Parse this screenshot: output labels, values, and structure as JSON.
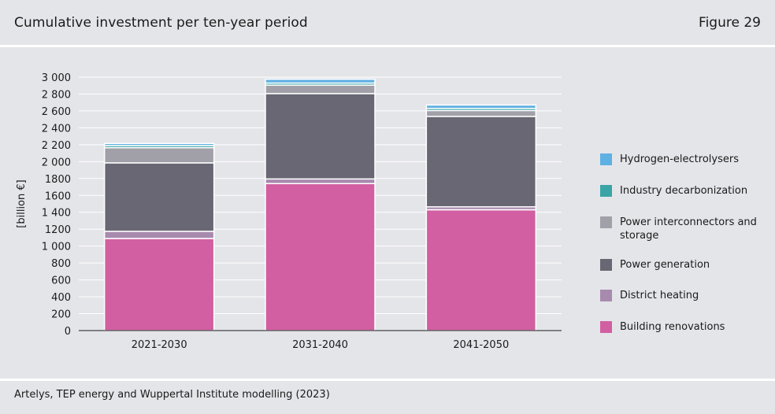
{
  "header": {
    "title": "Cumulative investment per ten-year period",
    "figure_label": "Figure 29"
  },
  "footer": {
    "source": "Artelys, TEP energy and Wuppertal Institute modelling (2023)"
  },
  "colors": {
    "Building renovations": "#d15fa1",
    "District heating": "#a88aae",
    "Power generation": "#686773",
    "Power interconnectors and storage": "#a1a0a8",
    "Industry decarbonization": "#3aa4a7",
    "Hydrogen-electrolysers": "#5fb0e3"
  },
  "chart_data": {
    "type": "bar",
    "stacked": true,
    "categories": [
      "2021-2030",
      "2031-2040",
      "2041-2050"
    ],
    "series": [
      {
        "name": "Building renovations",
        "values": [
          1090,
          1740,
          1430
        ]
      },
      {
        "name": "District heating",
        "values": [
          85,
          55,
          35
        ]
      },
      {
        "name": "Power generation",
        "values": [
          810,
          1010,
          1070
        ]
      },
      {
        "name": "Power interconnectors and storage",
        "values": [
          180,
          100,
          70
        ]
      },
      {
        "name": "Industry decarbonization",
        "values": [
          25,
          25,
          25
        ]
      },
      {
        "name": "Hydrogen-electrolysers",
        "values": [
          25,
          45,
          40
        ]
      }
    ],
    "ylabel": "[billion €]",
    "ylim": [
      0,
      3000
    ],
    "yticks": [
      "0",
      "200",
      "400",
      "600",
      "800",
      "1 000",
      "1200",
      "1 400",
      "1600",
      "1800",
      "2 000",
      "2 200",
      "2 400",
      "2 600",
      "2 800",
      "3 000"
    ],
    "legend": [
      "Hydrogen-electrolysers",
      "Industry decarbonization",
      "Power interconnectors and storage",
      "Power generation",
      "District heating",
      "Building renovations"
    ],
    "legend_position": "right",
    "grid": true
  }
}
